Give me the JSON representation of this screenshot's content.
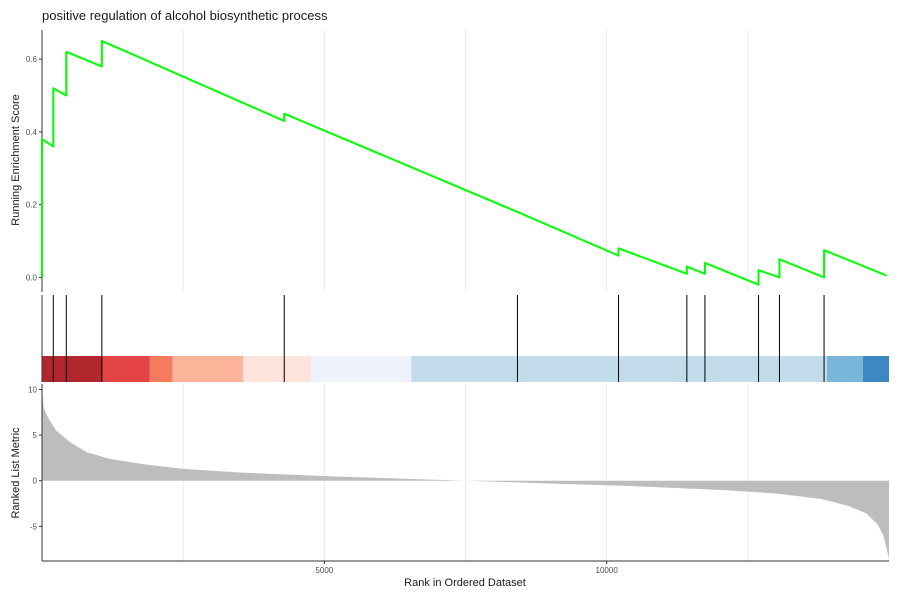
{
  "chart_data": {
    "type": "line",
    "title": "positive regulation of alcohol biosynthetic process",
    "xlabel": "Rank in Ordered Dataset",
    "xlim": [
      0,
      15000
    ],
    "x_ticks": [
      5000,
      10000
    ],
    "grid": true,
    "panels": {
      "enrichment": {
        "ylabel": "Running Enrichment Score",
        "ylim": [
          -0.04,
          0.68
        ],
        "y_ticks": [
          0.0,
          0.2,
          0.4,
          0.6
        ],
        "color": "#00ff00",
        "points": [
          [
            0,
            0.0
          ],
          [
            0,
            0.38
          ],
          [
            200,
            0.36
          ],
          [
            200,
            0.52
          ],
          [
            430,
            0.5
          ],
          [
            430,
            0.62
          ],
          [
            1060,
            0.58
          ],
          [
            1060,
            0.65
          ],
          [
            4290,
            0.43
          ],
          [
            4290,
            0.45
          ],
          [
            8420,
            0.18
          ],
          [
            10210,
            0.06
          ],
          [
            10210,
            0.08
          ],
          [
            11420,
            0.01
          ],
          [
            11420,
            0.03
          ],
          [
            11740,
            0.01
          ],
          [
            11740,
            0.04
          ],
          [
            12690,
            -0.02
          ],
          [
            12690,
            0.02
          ],
          [
            13060,
            0.0
          ],
          [
            13060,
            0.05
          ],
          [
            13850,
            0.0
          ],
          [
            13850,
            0.075
          ],
          [
            14960,
            0.005
          ]
        ]
      },
      "hits": {
        "positions": [
          0,
          200,
          430,
          1060,
          4290,
          8420,
          10210,
          11420,
          11740,
          12690,
          13060,
          13850
        ]
      },
      "color_bar": {
        "segments": [
          {
            "from": 0,
            "to": 1060,
            "color": "#b2272e"
          },
          {
            "from": 1060,
            "to": 1910,
            "color": "#e54444"
          },
          {
            "from": 1910,
            "to": 2310,
            "color": "#f57b5e"
          },
          {
            "from": 2310,
            "to": 3560,
            "color": "#fcb59a"
          },
          {
            "from": 3560,
            "to": 4770,
            "color": "#fde3d9"
          },
          {
            "from": 4770,
            "to": 6540,
            "color": "#eef3fb"
          },
          {
            "from": 6540,
            "to": 13900,
            "color": "#c3dceb"
          },
          {
            "from": 13900,
            "to": 14540,
            "color": "#7ab5da"
          },
          {
            "from": 14540,
            "to": 15000,
            "color": "#3d88c3"
          }
        ]
      },
      "ranked_metric": {
        "ylabel": "Ranked List Metric",
        "ylim": [
          -8.8,
          10.6
        ],
        "y_ticks": [
          -5,
          0,
          5,
          10
        ],
        "fill_color": "#bdbdbd",
        "points": [
          [
            0,
            10.0
          ],
          [
            30,
            8.0
          ],
          [
            100,
            7.0
          ],
          [
            250,
            5.5
          ],
          [
            500,
            4.2
          ],
          [
            800,
            3.1
          ],
          [
            1200,
            2.4
          ],
          [
            1800,
            1.8
          ],
          [
            2500,
            1.3
          ],
          [
            3500,
            0.9
          ],
          [
            5000,
            0.5
          ],
          [
            6500,
            0.2
          ],
          [
            7500,
            0.0
          ],
          [
            9000,
            -0.3
          ],
          [
            10500,
            -0.6
          ],
          [
            12000,
            -1.0
          ],
          [
            13000,
            -1.4
          ],
          [
            13800,
            -2.0
          ],
          [
            14300,
            -2.8
          ],
          [
            14600,
            -3.6
          ],
          [
            14800,
            -4.8
          ],
          [
            14900,
            -6.0
          ],
          [
            14960,
            -7.5
          ],
          [
            15000,
            -8.6
          ]
        ]
      }
    }
  }
}
